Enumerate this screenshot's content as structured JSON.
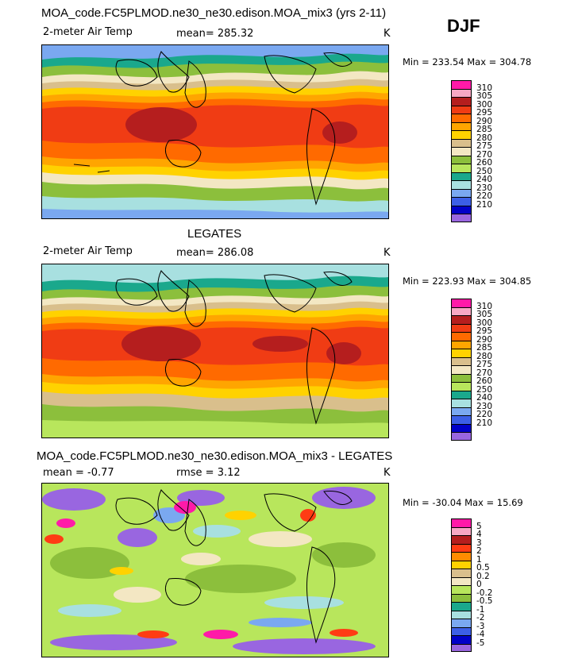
{
  "season": "DJF",
  "panels": [
    {
      "title": "MOA_code.FC5PLMOD.ne30_ne30.edison.MOA_mix3 (yrs 2-11)",
      "variable": "2-meter Air Temp",
      "stat1": "mean= 285.32",
      "stat2": "",
      "units": "K",
      "minmax": "Min = 233.54 Max = 304.78",
      "legend_levels": [
        "310",
        "305",
        "300",
        "295",
        "290",
        "285",
        "280",
        "275",
        "270",
        "260",
        "250",
        "240",
        "230",
        "220",
        "210"
      ],
      "legend_colors": [
        "#ff1aa8",
        "#f7a8c4",
        "#b51e1e",
        "#f03c14",
        "#ff6a00",
        "#ffa500",
        "#ffd200",
        "#d9bf8c",
        "#f3e7c3",
        "#8cbf3c",
        "#b8e65c",
        "#1aa88c",
        "#a8e0e0",
        "#7aa8f0",
        "#3c5fe6",
        "#0000c8",
        "#9966e0"
      ]
    },
    {
      "title": "LEGATES",
      "variable": "2-meter Air Temp",
      "stat1": "mean= 286.08",
      "stat2": "",
      "units": "K",
      "minmax": "Min = 223.93 Max = 304.85",
      "legend_levels": [
        "310",
        "305",
        "300",
        "295",
        "290",
        "285",
        "280",
        "275",
        "270",
        "260",
        "250",
        "240",
        "230",
        "220",
        "210"
      ],
      "legend_colors": [
        "#ff1aa8",
        "#f7a8c4",
        "#b51e1e",
        "#f03c14",
        "#ff6a00",
        "#ffa500",
        "#ffd200",
        "#d9bf8c",
        "#f3e7c3",
        "#8cbf3c",
        "#b8e65c",
        "#1aa88c",
        "#a8e0e0",
        "#7aa8f0",
        "#3c5fe6",
        "#0000c8",
        "#9966e0"
      ]
    },
    {
      "title": "MOA_code.FC5PLMOD.ne30_ne30.edison.MOA_mix3 - LEGATES",
      "variable": "",
      "stat1": "mean = -0.77",
      "stat2": "rmse = 3.12",
      "units": "K",
      "minmax": "Min = -30.04 Max = 15.69",
      "legend_levels": [
        "5",
        "4",
        "3",
        "2",
        "1",
        "0.5",
        "0.2",
        "0",
        "-0.2",
        "-0.5",
        "-1",
        "-2",
        "-3",
        "-4",
        "-5"
      ],
      "legend_colors": [
        "#ff1aa8",
        "#f7a8c4",
        "#b51e1e",
        "#ff3c14",
        "#ff8c00",
        "#ffd200",
        "#d9bf8c",
        "#f3e7c3",
        "#b8e65c",
        "#8cbf3c",
        "#1aa88c",
        "#a8e0e0",
        "#7aa8f0",
        "#3c5fe6",
        "#0000c8",
        "#9966e0"
      ]
    }
  ],
  "chart_data": [
    {
      "type": "heatmap",
      "title": "MOA_code.FC5PLMOD.ne30_ne30.edison.MOA_mix3 (yrs 2-11)",
      "variable": "2-meter Air Temp",
      "units": "K",
      "mean": 285.32,
      "min": 233.54,
      "max": 304.78,
      "contour_levels": [
        210,
        220,
        230,
        240,
        250,
        260,
        270,
        275,
        280,
        285,
        290,
        295,
        300,
        305,
        310
      ]
    },
    {
      "type": "heatmap",
      "title": "LEGATES",
      "variable": "2-meter Air Temp",
      "units": "K",
      "mean": 286.08,
      "min": 223.93,
      "max": 304.85,
      "contour_levels": [
        210,
        220,
        230,
        240,
        250,
        260,
        270,
        275,
        280,
        285,
        290,
        295,
        300,
        305,
        310
      ]
    },
    {
      "type": "heatmap",
      "title": "MOA_code.FC5PLMOD.ne30_ne30.edison.MOA_mix3 - LEGATES",
      "units": "K",
      "mean": -0.77,
      "rmse": 3.12,
      "min": -30.04,
      "max": 15.69,
      "contour_levels": [
        -5,
        -4,
        -3,
        -2,
        -1,
        -0.5,
        -0.2,
        0,
        0.2,
        0.5,
        1,
        2,
        3,
        4,
        5
      ]
    }
  ]
}
